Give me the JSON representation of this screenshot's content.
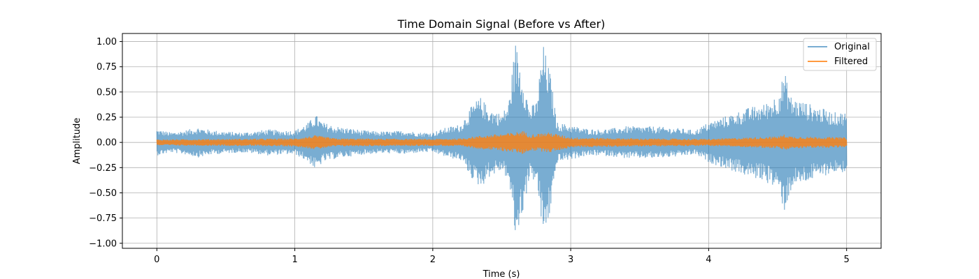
{
  "chart_data": {
    "type": "line",
    "title": "Time Domain Signal (Before vs After)",
    "xlabel": "Time (s)",
    "ylabel": "Amplitude",
    "xlim": [
      -0.25,
      5.25
    ],
    "ylim": [
      -1.05,
      1.08
    ],
    "xticks": [
      0,
      1,
      2,
      3,
      4,
      5
    ],
    "yticks": [
      -1.0,
      -0.75,
      -0.5,
      -0.25,
      0.0,
      0.25,
      0.5,
      0.75,
      1.0
    ],
    "xtick_labels": [
      "0",
      "1",
      "2",
      "3",
      "4",
      "5"
    ],
    "ytick_labels": [
      "−1.00",
      "−0.75",
      "−0.50",
      "−0.25",
      "0.00",
      "0.25",
      "0.50",
      "0.75",
      "1.00"
    ],
    "grid": true,
    "legend_position": "top-right",
    "series": [
      {
        "name": "Original",
        "color": "#1f77b4",
        "opacity": 0.6,
        "x": [
          0,
          0.1,
          0.2,
          0.3,
          0.4,
          0.5,
          0.6,
          0.7,
          0.8,
          0.9,
          1.0,
          1.1,
          1.15,
          1.2,
          1.3,
          1.4,
          1.5,
          1.6,
          1.7,
          1.8,
          1.9,
          2.0,
          2.1,
          2.2,
          2.3,
          2.35,
          2.4,
          2.5,
          2.55,
          2.6,
          2.65,
          2.7,
          2.75,
          2.8,
          2.85,
          2.9,
          3.0,
          3.1,
          3.2,
          3.3,
          3.4,
          3.5,
          3.6,
          3.7,
          3.8,
          3.9,
          4.0,
          4.1,
          4.2,
          4.3,
          4.4,
          4.5,
          4.55,
          4.6,
          4.7,
          4.8,
          4.9,
          5.0
        ],
        "envelope": [
          0.13,
          0.1,
          0.12,
          0.15,
          0.12,
          0.11,
          0.1,
          0.11,
          0.13,
          0.12,
          0.12,
          0.2,
          0.28,
          0.2,
          0.16,
          0.14,
          0.12,
          0.11,
          0.11,
          0.12,
          0.1,
          0.1,
          0.15,
          0.18,
          0.4,
          0.45,
          0.35,
          0.28,
          0.4,
          1.0,
          0.7,
          0.35,
          0.4,
          0.98,
          0.7,
          0.2,
          0.17,
          0.14,
          0.13,
          0.14,
          0.16,
          0.16,
          0.16,
          0.15,
          0.14,
          0.12,
          0.2,
          0.25,
          0.3,
          0.35,
          0.38,
          0.48,
          0.7,
          0.45,
          0.4,
          0.35,
          0.3,
          0.3
        ]
      },
      {
        "name": "Filtered",
        "color": "#ff7f0e",
        "opacity": 0.8,
        "x": [
          0,
          0.5,
          1.0,
          1.15,
          1.3,
          2.0,
          2.2,
          2.3,
          2.6,
          2.65,
          2.7,
          2.85,
          3.0,
          3.5,
          4.0,
          4.5,
          4.55,
          4.6,
          5.0
        ],
        "envelope": [
          0.03,
          0.035,
          0.04,
          0.07,
          0.04,
          0.035,
          0.04,
          0.06,
          0.1,
          0.12,
          0.08,
          0.1,
          0.05,
          0.04,
          0.035,
          0.06,
          0.08,
          0.06,
          0.05
        ]
      }
    ]
  }
}
